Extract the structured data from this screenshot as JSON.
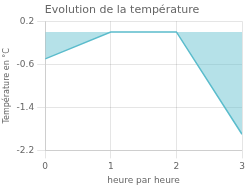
{
  "chart_data": {
    "type": "line",
    "title": "Evolution de la température",
    "xlabel": "heure par heure",
    "ylabel": "Température en °C",
    "x": [
      0,
      1,
      2,
      3
    ],
    "values": [
      -0.5,
      0.0,
      0.0,
      -1.9
    ],
    "color": "#5bbccc",
    "xlim": [
      0,
      3
    ],
    "xticks": [
      0,
      1,
      2,
      3
    ],
    "ylim": [
      -2.2,
      0.2
    ],
    "yticks": [
      0.2,
      -0.6,
      -1.4,
      -2.2
    ],
    "grid": true
  }
}
